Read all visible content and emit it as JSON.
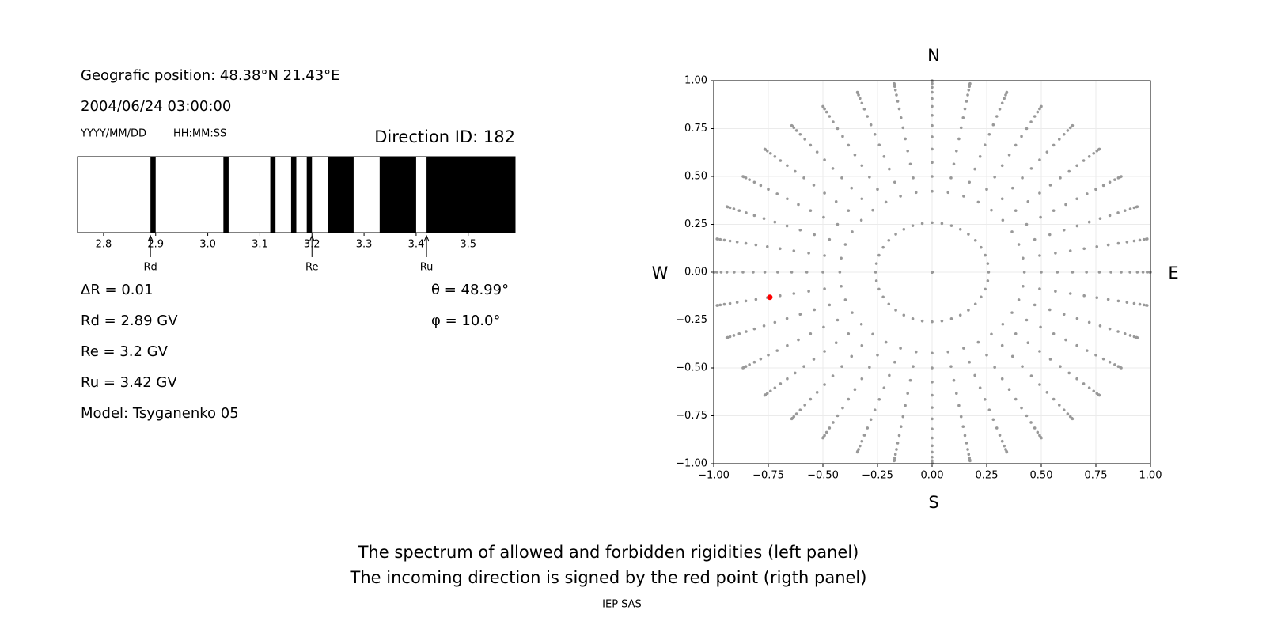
{
  "texts": {
    "position": "Geografic position: 48.38°N 21.43°E",
    "datetime": "2004/06/24 03:00:00",
    "date_format": "YYYY/MM/DD",
    "time_format": "HH:MM:SS",
    "direction": "Direction ID: 182",
    "info_left": [
      "ΔR = 0.01",
      "Rd = 2.89 GV",
      "Re = 3.2 GV",
      "Ru = 3.42 GV",
      "Model: Tsyganenko 05"
    ],
    "info_right": [
      "θ = 48.99°",
      "φ = 10.0°"
    ],
    "caption": [
      "The spectrum of allowed and forbidden rigidities (left panel)",
      "The incoming direction is signed by the red point (rigth panel)"
    ],
    "footer": "IEP SAS"
  },
  "chart_data": [
    {
      "type": "spectrum",
      "xlim": [
        2.75,
        3.59
      ],
      "xticks": [
        2.8,
        2.9,
        {
          "value": 3,
          "label": "3.0"
        },
        3.1,
        3.2,
        3.3,
        3.4,
        3.5
      ],
      "color": "#000000",
      "forbidden": [
        [
          2.89,
          2.9
        ],
        [
          3.03,
          3.04
        ],
        [
          3.12,
          3.13
        ],
        [
          3.16,
          3.17
        ],
        [
          3.19,
          3.2
        ],
        [
          3.23,
          3.28
        ],
        [
          3.33,
          3.4
        ],
        [
          3.42,
          3.59
        ]
      ],
      "markers": [
        {
          "label": "Rd",
          "value": 2.89
        },
        {
          "label": "Re",
          "value": 3.2
        },
        {
          "label": "Ru",
          "value": 3.42
        }
      ]
    },
    {
      "type": "direction",
      "xlim": [
        -1,
        1
      ],
      "ylim": [
        -1,
        1
      ],
      "xticks": [
        {
          "value": -1,
          "label": "−1.00"
        },
        {
          "value": -0.75,
          "label": "−0.75"
        },
        {
          "value": -0.5,
          "label": "−0.50"
        },
        {
          "value": -0.25,
          "label": "−0.25"
        },
        {
          "value": 0,
          "label": "0.00"
        },
        {
          "value": 0.25,
          "label": "0.25"
        },
        {
          "value": 0.5,
          "label": "0.50"
        },
        {
          "value": 0.75,
          "label": "0.75"
        },
        {
          "value": 1,
          "label": "1.00"
        }
      ],
      "yticks": [
        {
          "value": -1,
          "label": "−1.00"
        },
        {
          "value": -0.75,
          "label": "−0.75"
        },
        {
          "value": -0.5,
          "label": "−0.50"
        },
        {
          "value": -0.25,
          "label": "−0.25"
        },
        {
          "value": 0,
          "label": "0.00"
        },
        {
          "value": 0.25,
          "label": "0.25"
        },
        {
          "value": 0.5,
          "label": "0.50"
        },
        {
          "value": 0.75,
          "label": "0.75"
        },
        {
          "value": 1,
          "label": "1.00"
        }
      ],
      "grid": true,
      "compass": {
        "N": "N",
        "S": "S",
        "W": "W",
        "E": "E"
      },
      "grid_color": "#999999",
      "grid_theta": [
        0,
        15,
        25,
        30,
        35,
        40,
        45,
        50,
        55,
        60,
        65,
        70,
        75,
        80,
        85,
        90
      ],
      "grid_phi": [
        0,
        10,
        20,
        30,
        40,
        50,
        60,
        70,
        80,
        90,
        100,
        110,
        120,
        130,
        140,
        150,
        160,
        170,
        180,
        190,
        200,
        210,
        220,
        230,
        240,
        250,
        260,
        270,
        280,
        290,
        300,
        310,
        320,
        330,
        340,
        350
      ],
      "point": {
        "theta": 48.99,
        "phi": 10,
        "color": "#ff0000"
      }
    }
  ]
}
